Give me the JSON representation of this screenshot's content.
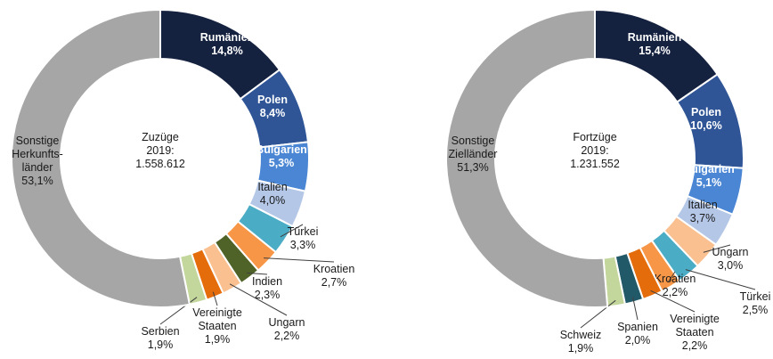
{
  "chart_data": [
    {
      "type": "pie",
      "title": "Zuzüge\n2019:\n1.558.612",
      "categories": [
        "Rumänien",
        "Polen",
        "Bulgarien",
        "Italien",
        "Türkei",
        "Kroatien",
        "Indien",
        "Ungarn",
        "Vereinigte\nStaaten",
        "Serbien",
        "Sonstige\nHerkunfts-\nländer"
      ],
      "values": [
        14.8,
        8.4,
        5.3,
        4.0,
        3.3,
        2.7,
        2.3,
        2.2,
        1.9,
        1.9,
        53.1
      ],
      "value_labels": [
        "14,8%",
        "8,4%",
        "5,3%",
        "4,0%",
        "3,3%",
        "2,7%",
        "2,3%",
        "2,2%",
        "1,9%",
        "1,9%",
        "53,1%"
      ],
      "colors": [
        "#14213f",
        "#2f5597",
        "#4a86d4",
        "#b4c7e7",
        "#4bacc6",
        "#f79646",
        "#4f6228",
        "#fac090",
        "#e46c0a",
        "#c3d69b",
        "#a6a6a6"
      ]
    },
    {
      "type": "pie",
      "title": "Fortzüge\n2019:\n1.231.552",
      "categories": [
        "Rumänien",
        "Polen",
        "Bulgarien",
        "Italien",
        "Ungarn",
        "Türkei",
        "Kroatien",
        "Vereinigte\nStaaten",
        "Spanien",
        "Schweiz",
        "Sonstige\nZielländer"
      ],
      "values": [
        15.4,
        10.6,
        5.1,
        3.7,
        3.0,
        2.5,
        2.2,
        2.2,
        2.0,
        1.9,
        51.3
      ],
      "value_labels": [
        "15,4%",
        "10,6%",
        "5,1%",
        "3,7%",
        "3,0%",
        "2,5%",
        "2,2%",
        "2,2%",
        "2,0%",
        "1,9%",
        "51,3%"
      ],
      "colors": [
        "#14213f",
        "#2f5597",
        "#4a86d4",
        "#b4c7e7",
        "#fac090",
        "#4bacc6",
        "#f79646",
        "#e46c0a",
        "#215968",
        "#c3d69b",
        "#a6a6a6"
      ]
    }
  ]
}
